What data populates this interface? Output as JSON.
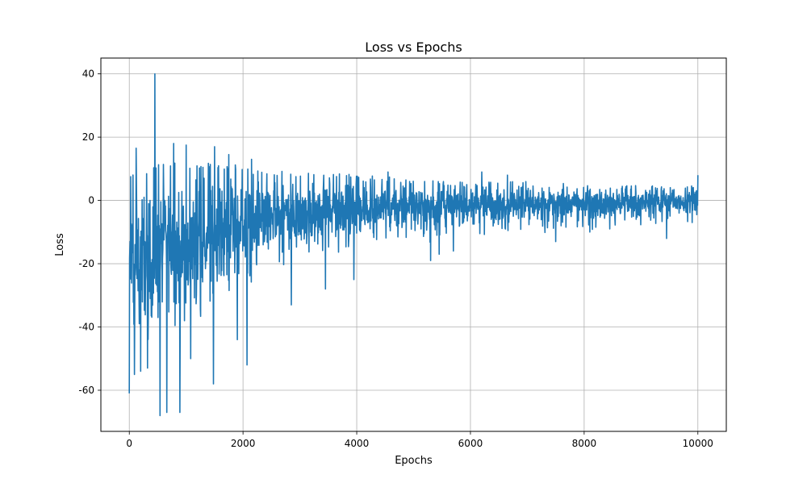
{
  "chart_data": {
    "type": "line",
    "title": "Loss vs Epochs",
    "xlabel": "Epochs",
    "ylabel": "Loss",
    "xlim": [
      -500,
      10500
    ],
    "ylim": [
      -73,
      45
    ],
    "x_ticks": [
      0,
      2000,
      4000,
      6000,
      8000,
      10000
    ],
    "y_ticks": [
      -60,
      -40,
      -20,
      0,
      20,
      40
    ],
    "grid": true,
    "line_color": "#1f77b4",
    "series": [
      {
        "x_range": [
          0,
          10000
        ],
        "envelope": {
          "note": "Noisy loss signal; approximate upper and lower bounds of oscillation per epoch range",
          "x": [
            0,
            500,
            1000,
            1500,
            2000,
            2500,
            3000,
            3500,
            4000,
            5000,
            6000,
            7000,
            8000,
            9000,
            10000
          ],
          "upper": [
            8,
            12,
            12,
            12,
            11,
            10,
            9,
            9,
            8,
            7,
            6,
            6,
            5,
            5,
            5
          ],
          "lower": [
            -48,
            -42,
            -38,
            -32,
            -26,
            -20,
            -17,
            -15,
            -13,
            -11,
            -9,
            -8,
            -7,
            -6,
            -5
          ]
        },
        "spikes": [
          {
            "x": 0,
            "y": -61
          },
          {
            "x": 25,
            "y": 7.5
          },
          {
            "x": 90,
            "y": -55
          },
          {
            "x": 120,
            "y": 16.5
          },
          {
            "x": 200,
            "y": -54
          },
          {
            "x": 320,
            "y": -53
          },
          {
            "x": 450,
            "y": 40
          },
          {
            "x": 540,
            "y": -68
          },
          {
            "x": 660,
            "y": -67
          },
          {
            "x": 780,
            "y": 18
          },
          {
            "x": 890,
            "y": -67
          },
          {
            "x": 1000,
            "y": 17.5
          },
          {
            "x": 1080,
            "y": -50
          },
          {
            "x": 1480,
            "y": -58
          },
          {
            "x": 1500,
            "y": 17
          },
          {
            "x": 1750,
            "y": 14.5
          },
          {
            "x": 1900,
            "y": -44
          },
          {
            "x": 2070,
            "y": -52
          },
          {
            "x": 2150,
            "y": 13
          },
          {
            "x": 2850,
            "y": -33
          },
          {
            "x": 3450,
            "y": -28
          },
          {
            "x": 3950,
            "y": -25
          },
          {
            "x": 4550,
            "y": 9
          },
          {
            "x": 5300,
            "y": -19
          },
          {
            "x": 5450,
            "y": -17
          },
          {
            "x": 5700,
            "y": -16
          },
          {
            "x": 6200,
            "y": 9
          },
          {
            "x": 6650,
            "y": 8
          },
          {
            "x": 7500,
            "y": -13
          },
          {
            "x": 8100,
            "y": -10
          },
          {
            "x": 8450,
            "y": -9
          },
          {
            "x": 9450,
            "y": -12
          },
          {
            "x": 9900,
            "y": -7
          },
          {
            "x": 10000,
            "y": 8
          }
        ]
      }
    ]
  }
}
